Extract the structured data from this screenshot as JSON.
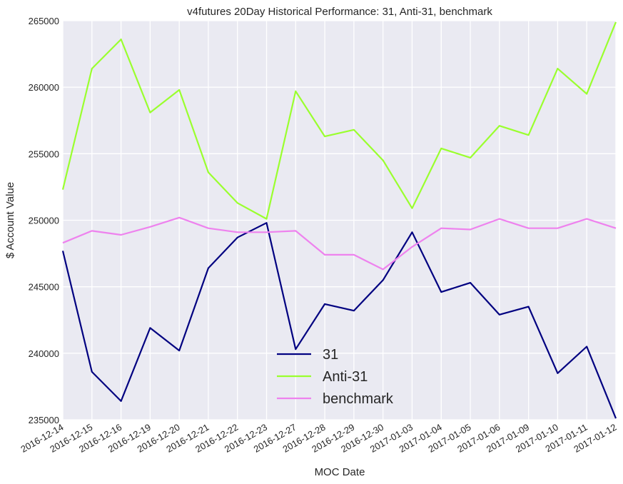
{
  "chart_data": {
    "type": "line",
    "title": "v4futures 20Day Historical Performance: 31, Anti-31, benchmark",
    "xlabel": "MOC Date",
    "ylabel": "$ Account Value",
    "ylim": [
      235000,
      265000
    ],
    "yticks": [
      235000,
      240000,
      245000,
      250000,
      255000,
      260000,
      265000
    ],
    "grid": true,
    "legend_position": "bottom-center",
    "background_color": "#eaeaf2",
    "grid_color": "#ffffff",
    "categories": [
      "2016-12-14",
      "2016-12-15",
      "2016-12-16",
      "2016-12-19",
      "2016-12-20",
      "2016-12-21",
      "2016-12-22",
      "2016-12-23",
      "2016-12-27",
      "2016-12-28",
      "2016-12-29",
      "2016-12-30",
      "2017-01-03",
      "2017-01-04",
      "2017-01-05",
      "2017-01-06",
      "2017-01-09",
      "2017-01-10",
      "2017-01-11",
      "2017-01-12"
    ],
    "series": [
      {
        "name": "31",
        "color": "#000080",
        "values": [
          247700,
          238600,
          236400,
          241900,
          240200,
          246400,
          248700,
          249800,
          240300,
          243700,
          243200,
          245500,
          249100,
          244600,
          245300,
          242900,
          243500,
          238500,
          240500,
          235100
        ]
      },
      {
        "name": "Anti-31",
        "color": "#9aff2e",
        "values": [
          252300,
          261400,
          263600,
          258100,
          259800,
          253600,
          251300,
          250100,
          259700,
          256300,
          256800,
          254500,
          250900,
          255400,
          254700,
          257100,
          256400,
          261400,
          259500,
          264900
        ]
      },
      {
        "name": "benchmark",
        "color": "#ee82ee",
        "values": [
          248300,
          249200,
          248900,
          249500,
          250200,
          249400,
          249100,
          249100,
          249200,
          247400,
          247400,
          246300,
          248000,
          249400,
          249300,
          250100,
          249400,
          249400,
          250100,
          249400
        ]
      }
    ]
  }
}
